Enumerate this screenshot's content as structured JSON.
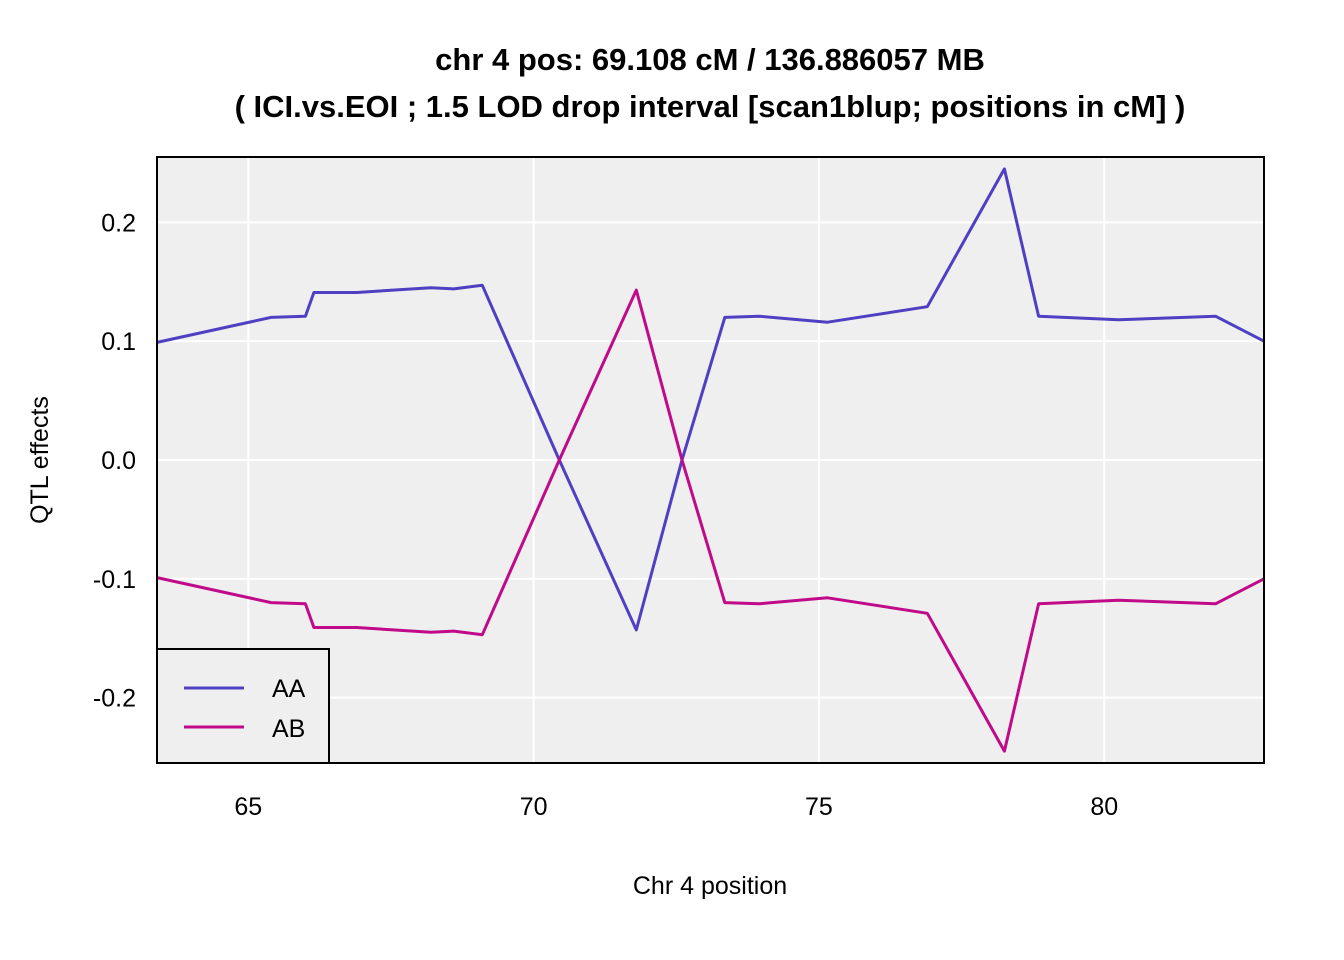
{
  "chart_data": {
    "type": "line",
    "title": "chr 4 pos:  69.108 cM / 136.886057 MB",
    "subtitle": "( ICI.vs.EOI ; 1.5 LOD drop interval [scan1blup; positions in cM] )",
    "xlabel": "Chr 4 position",
    "ylabel": "QTL effects",
    "xlim": [
      63.4,
      82.8
    ],
    "ylim": [
      -0.255,
      0.255
    ],
    "xticks": [
      65,
      70,
      75,
      80
    ],
    "yticks": [
      -0.2,
      -0.1,
      0.0,
      0.1,
      0.2
    ],
    "xtick_labels": [
      "65",
      "70",
      "75",
      "80"
    ],
    "ytick_labels": [
      "-0.2",
      "-0.1",
      "0.0",
      "0.1",
      "0.2"
    ],
    "grid": true,
    "legend_position": "bottom-left",
    "series": [
      {
        "name": "AA",
        "color": "#4f3fc2",
        "x": [
          63.4,
          65.4,
          66.0,
          66.15,
          66.9,
          68.2,
          68.6,
          69.1,
          70.45,
          71.8,
          72.6,
          73.35,
          73.95,
          75.15,
          76.9,
          78.25,
          78.85,
          80.25,
          81.95,
          82.8
        ],
        "y": [
          0.099,
          0.12,
          0.121,
          0.141,
          0.141,
          0.145,
          0.144,
          0.147,
          0.0,
          -0.143,
          0.0,
          0.12,
          0.121,
          0.116,
          0.129,
          0.245,
          0.121,
          0.118,
          0.121,
          0.1
        ]
      },
      {
        "name": "AB",
        "color": "#c00a8a",
        "x": [
          63.4,
          65.4,
          66.0,
          66.15,
          66.9,
          68.2,
          68.6,
          69.1,
          70.45,
          71.8,
          72.6,
          73.35,
          73.95,
          75.15,
          76.9,
          78.25,
          78.85,
          80.25,
          81.95,
          82.8
        ],
        "y": [
          -0.099,
          -0.12,
          -0.121,
          -0.141,
          -0.141,
          -0.145,
          -0.144,
          -0.147,
          0.0,
          0.143,
          0.0,
          -0.12,
          -0.121,
          -0.116,
          -0.129,
          -0.245,
          -0.121,
          -0.118,
          -0.121,
          -0.1
        ]
      }
    ],
    "colors": {
      "panel_background": "#efefef",
      "grid": "#ffffff",
      "axis": "#000000"
    }
  }
}
